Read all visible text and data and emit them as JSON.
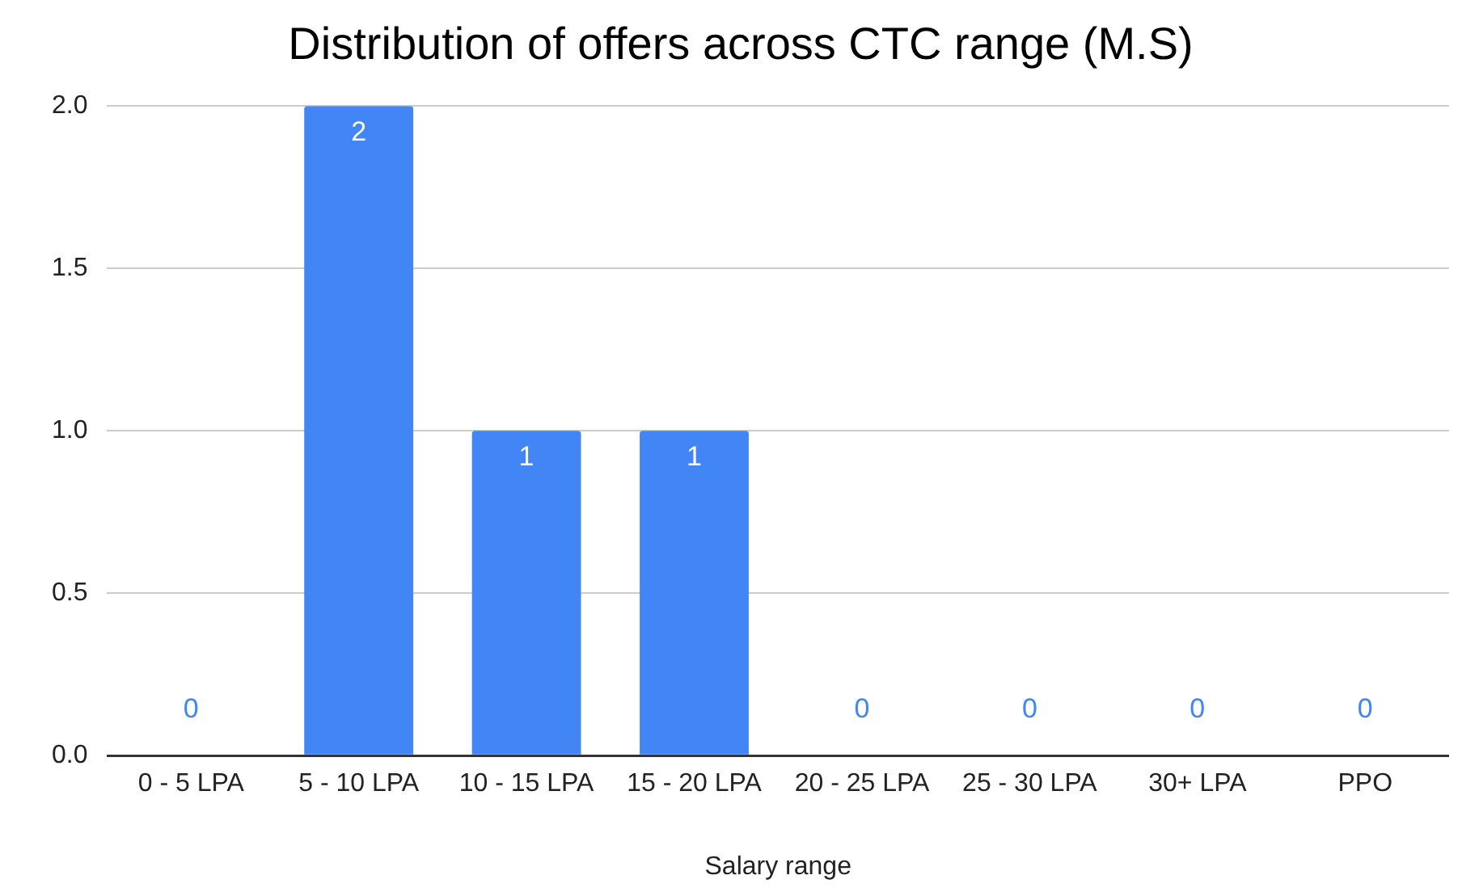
{
  "chart_data": {
    "type": "bar",
    "title": "Distribution of offers across CTC range (M.S)",
    "xlabel": "Salary range",
    "categories": [
      "0 - 5 LPA",
      "5 - 10 LPA",
      "10 - 15 LPA",
      "15 - 20 LPA",
      "20 - 25 LPA",
      "25 - 30 LPA",
      "30+ LPA",
      "PPO"
    ],
    "values": [
      0,
      2,
      1,
      1,
      0,
      0,
      0,
      0
    ],
    "color": "#4285f4",
    "ylim": [
      0,
      2
    ],
    "yticks": [
      {
        "value": 0,
        "label": "0.0"
      },
      {
        "value": 0.5,
        "label": "0.5"
      },
      {
        "value": 1,
        "label": "1.0"
      },
      {
        "value": 1.5,
        "label": "1.5"
      },
      {
        "value": 2,
        "label": "2.0"
      }
    ],
    "grid": "y",
    "data_labels": true
  }
}
